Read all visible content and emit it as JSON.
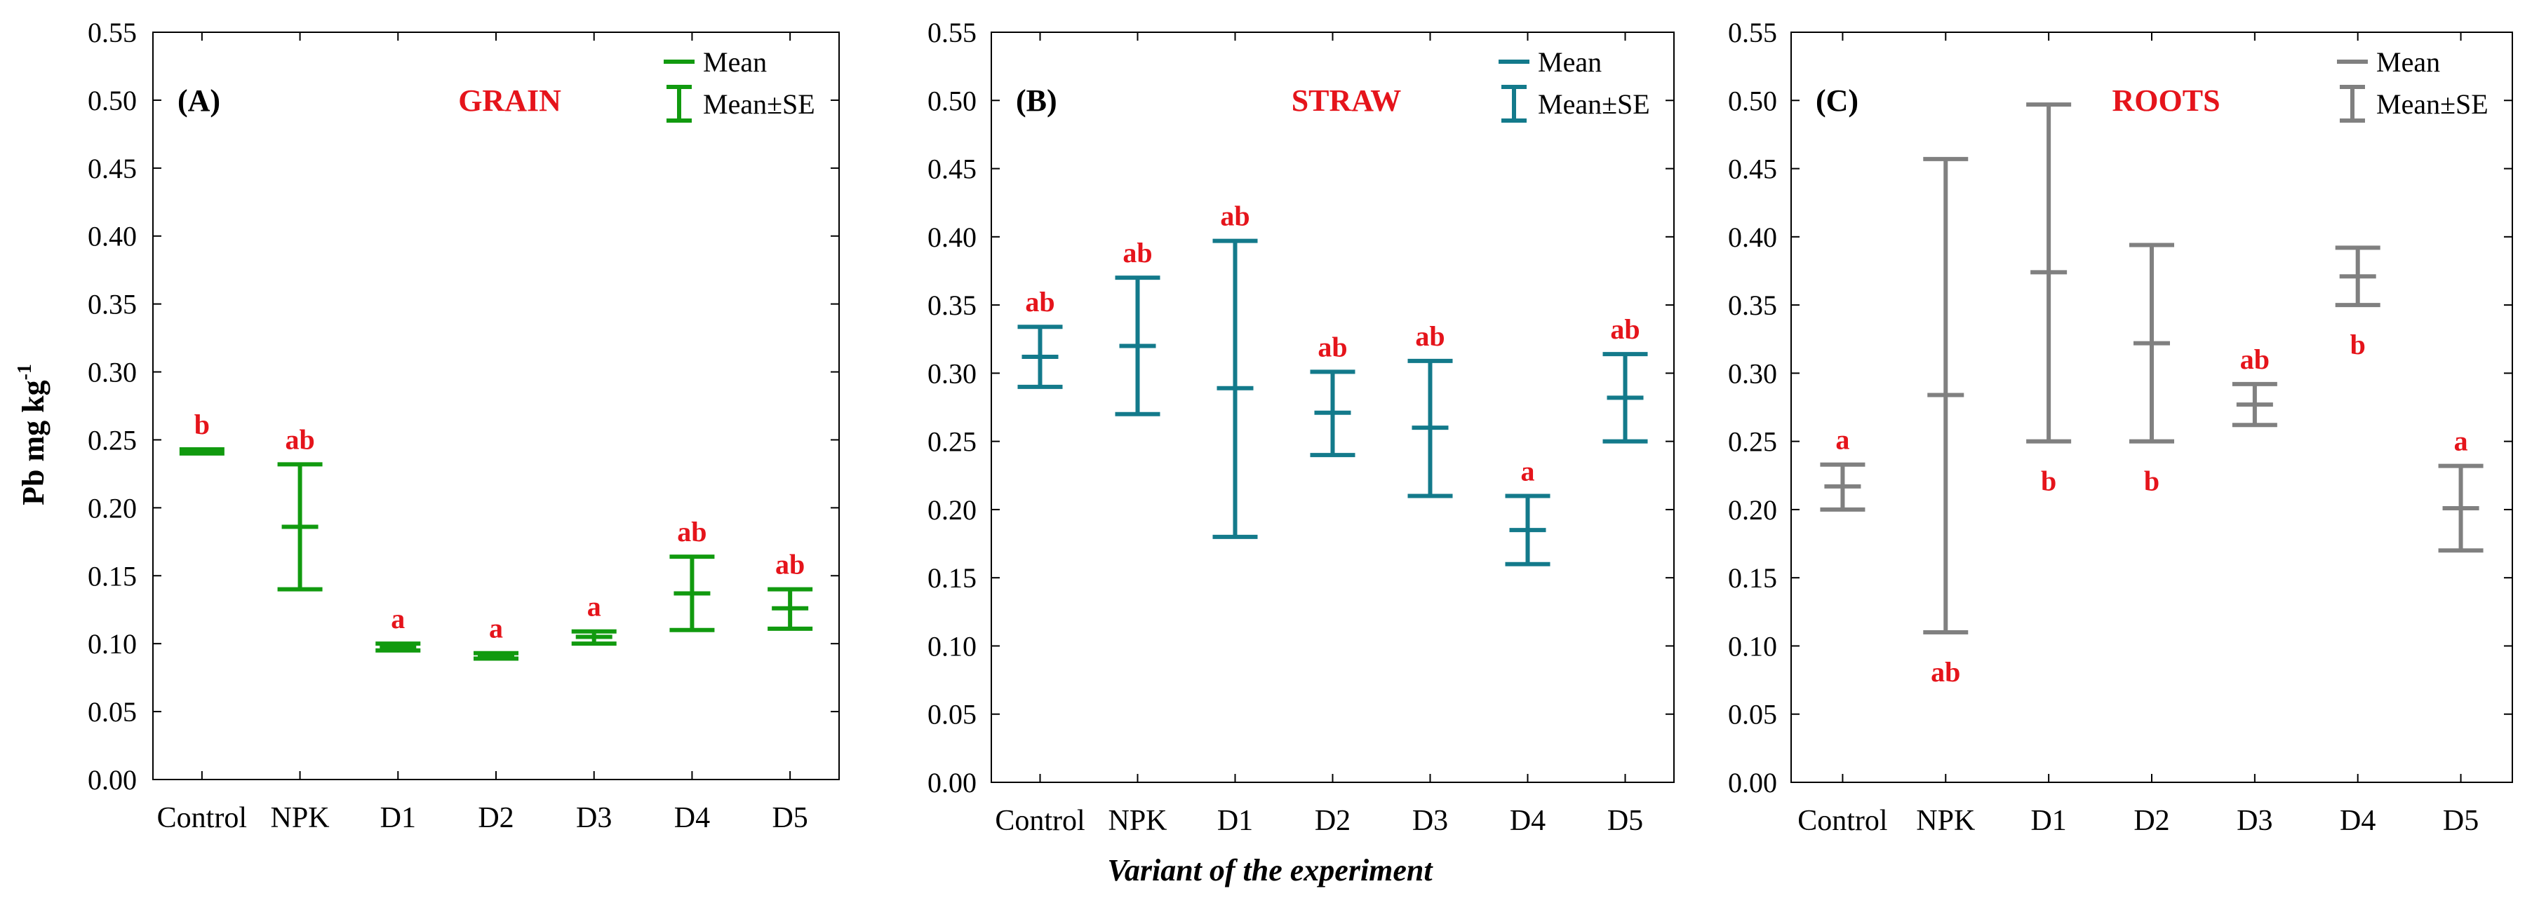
{
  "chart_data": {
    "type": "errorbar",
    "ylabel_main": "Pb mg kg",
    "ylabel_sup": "-1",
    "xlabel": "Variant of the experiment",
    "categories": [
      "Control",
      "NPK",
      "D1",
      "D2",
      "D3",
      "D4",
      "D5"
    ],
    "ylim": [
      0,
      0.55
    ],
    "yticks": [
      0.0,
      0.05,
      0.1,
      0.15,
      0.2,
      0.25,
      0.3,
      0.35,
      0.4,
      0.45,
      0.5,
      0.55
    ],
    "ytick_labels": [
      "0.00",
      "0.05",
      "0.10",
      "0.15",
      "0.20",
      "0.25",
      "0.30",
      "0.35",
      "0.40",
      "0.45",
      "0.50",
      "0.55"
    ],
    "legend": {
      "mean": "Mean",
      "se": "Mean±SE",
      "placement": "top-right"
    },
    "panels": [
      {
        "tag": "(A)",
        "title": "GRAIN",
        "color": "#119a0f",
        "mean": [
          0.242,
          0.186,
          0.098,
          0.091,
          0.105,
          0.137,
          0.126
        ],
        "lower": [
          0.24,
          0.14,
          0.095,
          0.089,
          0.1,
          0.11,
          0.111
        ],
        "upper": [
          0.243,
          0.232,
          0.1,
          0.093,
          0.109,
          0.164,
          0.14
        ],
        "letters": [
          "b",
          "ab",
          "a",
          "a",
          "a",
          "ab",
          "ab"
        ],
        "letter_pos": [
          "above",
          "above",
          "above",
          "above",
          "above",
          "above",
          "above"
        ]
      },
      {
        "tag": "(B)",
        "title": "STRAW",
        "color": "#137a8b",
        "mean": [
          0.312,
          0.32,
          0.289,
          0.271,
          0.26,
          0.185,
          0.282
        ],
        "lower": [
          0.29,
          0.27,
          0.18,
          0.24,
          0.21,
          0.16,
          0.25
        ],
        "upper": [
          0.334,
          0.37,
          0.397,
          0.301,
          0.309,
          0.21,
          0.314
        ],
        "letters": [
          "ab",
          "ab",
          "ab",
          "ab",
          "ab",
          "a",
          "ab"
        ],
        "letter_pos": [
          "above",
          "above",
          "above",
          "above",
          "above",
          "above",
          "above"
        ]
      },
      {
        "tag": "(C)",
        "title": "ROOTS",
        "color": "#808080",
        "mean": [
          0.217,
          0.284,
          0.374,
          0.322,
          0.277,
          0.371,
          0.201
        ],
        "lower": [
          0.2,
          0.11,
          0.25,
          0.25,
          0.262,
          0.35,
          0.17
        ],
        "upper": [
          0.233,
          0.457,
          0.497,
          0.394,
          0.292,
          0.392,
          0.232
        ],
        "letters": [
          "a",
          "ab",
          "b",
          "b",
          "ab",
          "b",
          "a"
        ],
        "letter_pos": [
          "above",
          "below",
          "below",
          "below",
          "above",
          "below",
          "above"
        ]
      }
    ]
  },
  "accent_color": "#e5141b"
}
